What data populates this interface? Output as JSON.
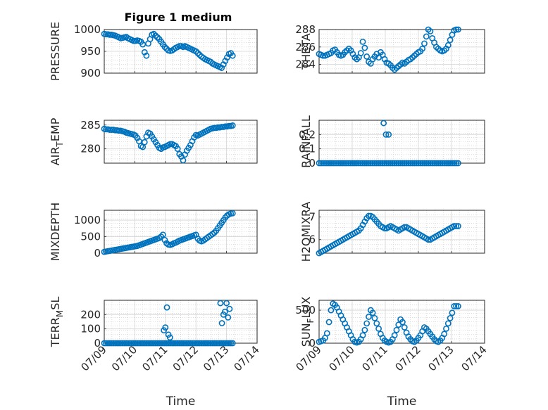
{
  "figure_title": "Figure 1 medium",
  "marker_color": "#0072BD",
  "x_tick_labels": [
    "07/09",
    "07/10",
    "07/11",
    "07/12",
    "07/13",
    "07/14"
  ],
  "chart_data": [
    {
      "type": "scatter",
      "id": "pressure",
      "xlabel": "",
      "ylabel": {
        "main": "PRESSURE",
        "sub": ""
      },
      "xlim": [
        0,
        5
      ],
      "ylim": [
        900,
        1000
      ],
      "yticks": [
        900,
        950,
        1000
      ],
      "ytick_labels": [
        "900",
        "950",
        "1000"
      ],
      "x": [
        0.0,
        0.06,
        0.12,
        0.18,
        0.24,
        0.3,
        0.36,
        0.42,
        0.48,
        0.54,
        0.6,
        0.66,
        0.72,
        0.78,
        0.84,
        0.9,
        0.96,
        1.02,
        1.08,
        1.14,
        1.2,
        1.26,
        1.32,
        1.38,
        1.44,
        1.5,
        1.56,
        1.62,
        1.68,
        1.74,
        1.8,
        1.86,
        1.92,
        1.98,
        2.04,
        2.1,
        2.16,
        2.22,
        2.28,
        2.34,
        2.4,
        2.46,
        2.52,
        2.58,
        2.64,
        2.7,
        2.76,
        2.82,
        2.88,
        2.94,
        3.0,
        3.06,
        3.12,
        3.18,
        3.24,
        3.3,
        3.36,
        3.42,
        3.48,
        3.54,
        3.6,
        3.66,
        3.72,
        3.78,
        3.84,
        3.9,
        3.96,
        4.02,
        4.08,
        4.14,
        4.2
      ],
      "y": [
        990,
        989,
        989,
        988,
        988,
        987,
        986,
        984,
        982,
        980,
        981,
        982,
        983,
        980,
        978,
        976,
        974,
        974,
        975,
        974,
        972,
        966,
        948,
        940,
        968,
        978,
        988,
        990,
        986,
        982,
        978,
        972,
        966,
        960,
        956,
        952,
        951,
        952,
        955,
        958,
        960,
        962,
        962,
        960,
        962,
        960,
        958,
        956,
        954,
        952,
        950,
        946,
        942,
        938,
        935,
        932,
        930,
        928,
        926,
        922,
        920,
        918,
        916,
        914,
        912,
        920,
        928,
        936,
        944,
        946,
        940
      ]
    },
    {
      "type": "scatter",
      "id": "theta",
      "xlabel": "",
      "ylabel": {
        "main": "THETA",
        "sub": ""
      },
      "xlim": [
        0,
        5
      ],
      "ylim": [
        283,
        288
      ],
      "yticks": [
        284,
        286,
        288
      ],
      "ytick_labels": [
        "284",
        "286",
        "288"
      ],
      "x": [
        0.0,
        0.06,
        0.12,
        0.18,
        0.24,
        0.3,
        0.36,
        0.42,
        0.48,
        0.54,
        0.6,
        0.66,
        0.72,
        0.78,
        0.84,
        0.9,
        0.96,
        1.02,
        1.08,
        1.14,
        1.2,
        1.26,
        1.32,
        1.38,
        1.44,
        1.5,
        1.56,
        1.62,
        1.68,
        1.74,
        1.8,
        1.86,
        1.92,
        1.98,
        2.04,
        2.1,
        2.16,
        2.22,
        2.28,
        2.34,
        2.4,
        2.46,
        2.52,
        2.58,
        2.64,
        2.7,
        2.76,
        2.82,
        2.88,
        2.94,
        3.0,
        3.06,
        3.12,
        3.18,
        3.24,
        3.3,
        3.36,
        3.42,
        3.48,
        3.54,
        3.6,
        3.66,
        3.72,
        3.78,
        3.84,
        3.9,
        3.96,
        4.02,
        4.08,
        4.14,
        4.2
      ],
      "y": [
        285.2,
        285.1,
        285.0,
        285.0,
        285.1,
        285.2,
        285.3,
        285.6,
        285.7,
        285.4,
        285.1,
        285.0,
        285.1,
        285.4,
        285.6,
        285.8,
        285.6,
        285.2,
        284.8,
        284.6,
        284.8,
        285.3,
        286.6,
        285.9,
        284.9,
        284.3,
        284.1,
        284.6,
        284.9,
        285.2,
        284.8,
        285.4,
        285.1,
        284.6,
        284.2,
        284.1,
        283.9,
        283.6,
        283.4,
        283.6,
        283.8,
        284.0,
        284.2,
        284.1,
        284.3,
        284.5,
        284.6,
        284.8,
        285.0,
        285.2,
        285.4,
        285.5,
        285.8,
        286.4,
        287.2,
        288.3,
        287.8,
        287.0,
        286.5,
        286.0,
        285.8,
        285.6,
        285.5,
        285.6,
        285.8,
        286.2,
        286.8,
        287.4,
        287.9,
        288.2,
        288.3
      ]
    },
    {
      "type": "scatter",
      "id": "air-temp",
      "xlabel": "",
      "ylabel": {
        "main": "AIR",
        "sub": "T",
        "suffix": "EMP"
      },
      "xlim": [
        0,
        5
      ],
      "ylim": [
        277,
        286
      ],
      "yticks": [
        280,
        285
      ],
      "ytick_labels": [
        "280",
        "285"
      ],
      "x": [
        0.0,
        0.06,
        0.12,
        0.18,
        0.24,
        0.3,
        0.36,
        0.42,
        0.48,
        0.54,
        0.6,
        0.66,
        0.72,
        0.78,
        0.84,
        0.9,
        0.96,
        1.02,
        1.08,
        1.14,
        1.2,
        1.26,
        1.32,
        1.38,
        1.44,
        1.5,
        1.56,
        1.62,
        1.68,
        1.74,
        1.8,
        1.86,
        1.92,
        1.98,
        2.04,
        2.1,
        2.16,
        2.22,
        2.28,
        2.34,
        2.4,
        2.46,
        2.52,
        2.58,
        2.64,
        2.7,
        2.76,
        2.82,
        2.88,
        2.94,
        3.0,
        3.06,
        3.12,
        3.18,
        3.24,
        3.3,
        3.36,
        3.42,
        3.48,
        3.54,
        3.6,
        3.66,
        3.72,
        3.78,
        3.84,
        3.9,
        3.96,
        4.02,
        4.08,
        4.14,
        4.2
      ],
      "y": [
        284.2,
        284.1,
        284.1,
        284.0,
        284.0,
        284.0,
        283.9,
        283.9,
        283.8,
        283.8,
        283.7,
        283.6,
        283.4,
        283.3,
        283.2,
        283.1,
        283.0,
        282.8,
        282.3,
        281.6,
        280.6,
        280.4,
        281.4,
        282.6,
        283.4,
        283.2,
        282.6,
        282.0,
        281.4,
        280.8,
        280.2,
        280.0,
        280.3,
        280.4,
        280.6,
        280.8,
        281.0,
        281.0,
        280.8,
        280.6,
        280.0,
        278.9,
        278.4,
        277.6,
        278.8,
        279.6,
        280.2,
        280.8,
        281.6,
        282.4,
        282.9,
        282.8,
        283.0,
        283.2,
        283.4,
        283.6,
        283.8,
        284.0,
        284.2,
        284.3,
        284.4,
        284.4,
        284.5,
        284.5,
        284.6,
        284.6,
        284.7,
        284.7,
        284.8,
        284.8,
        284.9
      ]
    },
    {
      "type": "scatter",
      "id": "rainfall",
      "xlabel": "",
      "ylabel": {
        "main": "RAINFALL",
        "sub": ""
      },
      "xlim": [
        0,
        5
      ],
      "ylim": [
        0,
        0.3
      ],
      "yticks": [
        0,
        0.1,
        0.2
      ],
      "ytick_labels": [
        "0",
        "0.1",
        "0.2"
      ],
      "x": [
        0.0,
        0.06,
        0.12,
        0.18,
        0.24,
        0.3,
        0.36,
        0.42,
        0.48,
        0.54,
        0.6,
        0.66,
        0.72,
        0.78,
        0.84,
        0.9,
        0.96,
        1.02,
        1.08,
        1.14,
        1.2,
        1.26,
        1.32,
        1.38,
        1.44,
        1.5,
        1.56,
        1.62,
        1.68,
        1.74,
        1.8,
        1.86,
        1.92,
        1.98,
        2.04,
        2.1,
        2.16,
        2.22,
        2.28,
        2.34,
        2.4,
        2.46,
        2.52,
        2.58,
        2.64,
        2.7,
        2.76,
        2.82,
        2.88,
        2.94,
        3.0,
        3.06,
        3.12,
        3.18,
        3.24,
        3.3,
        3.36,
        3.42,
        3.48,
        3.54,
        3.6,
        3.66,
        3.72,
        3.78,
        3.84,
        3.9,
        3.96,
        4.02,
        4.08,
        4.14,
        4.2
      ],
      "y": [
        0,
        0,
        0,
        0,
        0,
        0,
        0,
        0,
        0,
        0,
        0,
        0,
        0,
        0,
        0,
        0,
        0,
        0,
        0,
        0,
        0,
        0,
        0,
        0,
        0,
        0,
        0,
        0,
        0,
        0,
        0,
        0,
        0,
        0,
        0,
        0,
        0,
        0,
        0,
        0,
        0,
        0,
        0,
        0,
        0,
        0,
        0,
        0,
        0,
        0,
        0,
        0,
        0,
        0,
        0,
        0,
        0,
        0,
        0,
        0,
        0,
        0,
        0,
        0,
        0,
        0,
        0,
        0,
        0,
        0,
        0
      ],
      "extra_points": [
        [
          1.95,
          0.28
        ],
        [
          2.02,
          0.2
        ],
        [
          2.1,
          0.2
        ]
      ]
    },
    {
      "type": "scatter",
      "id": "mixdepth",
      "xlabel": "",
      "ylabel": {
        "main": "MIXDEPTH",
        "sub": ""
      },
      "xlim": [
        0,
        5
      ],
      "ylim": [
        0,
        1300
      ],
      "yticks": [
        0,
        500,
        1000
      ],
      "ytick_labels": [
        "0",
        "500",
        "1000"
      ],
      "x": [
        0.0,
        0.06,
        0.12,
        0.18,
        0.24,
        0.3,
        0.36,
        0.42,
        0.48,
        0.54,
        0.6,
        0.66,
        0.72,
        0.78,
        0.84,
        0.9,
        0.96,
        1.02,
        1.08,
        1.14,
        1.2,
        1.26,
        1.32,
        1.38,
        1.44,
        1.5,
        1.56,
        1.62,
        1.68,
        1.74,
        1.8,
        1.86,
        1.92,
        1.98,
        2.04,
        2.1,
        2.16,
        2.22,
        2.28,
        2.34,
        2.4,
        2.46,
        2.52,
        2.58,
        2.64,
        2.7,
        2.76,
        2.82,
        2.88,
        2.94,
        3.0,
        3.06,
        3.12,
        3.18,
        3.24,
        3.3,
        3.36,
        3.42,
        3.48,
        3.54,
        3.6,
        3.66,
        3.72,
        3.78,
        3.84,
        3.9,
        3.96,
        4.02,
        4.08,
        4.14,
        4.2
      ],
      "y": [
        40,
        50,
        60,
        70,
        80,
        90,
        100,
        110,
        120,
        130,
        140,
        150,
        160,
        170,
        180,
        190,
        200,
        210,
        220,
        240,
        260,
        280,
        300,
        320,
        340,
        360,
        380,
        400,
        420,
        440,
        460,
        500,
        560,
        400,
        300,
        260,
        250,
        270,
        300,
        320,
        350,
        380,
        400,
        420,
        440,
        460,
        480,
        500,
        520,
        540,
        560,
        440,
        380,
        360,
        380,
        420,
        460,
        500,
        540,
        580,
        620,
        680,
        760,
        840,
        920,
        1000,
        1080,
        1140,
        1180,
        1200,
        1210
      ]
    },
    {
      "type": "scatter",
      "id": "h2omixra",
      "xlabel": "",
      "ylabel": {
        "main": "H2OMIXRA",
        "sub": ""
      },
      "xlim": [
        0,
        5
      ],
      "ylim": [
        5.4,
        7.3
      ],
      "yticks": [
        6,
        7
      ],
      "ytick_labels": [
        "6",
        "7"
      ],
      "x": [
        0.0,
        0.06,
        0.12,
        0.18,
        0.24,
        0.3,
        0.36,
        0.42,
        0.48,
        0.54,
        0.6,
        0.66,
        0.72,
        0.78,
        0.84,
        0.9,
        0.96,
        1.02,
        1.08,
        1.14,
        1.2,
        1.26,
        1.32,
        1.38,
        1.44,
        1.5,
        1.56,
        1.62,
        1.68,
        1.74,
        1.8,
        1.86,
        1.92,
        1.98,
        2.04,
        2.1,
        2.16,
        2.22,
        2.28,
        2.34,
        2.4,
        2.46,
        2.52,
        2.58,
        2.64,
        2.7,
        2.76,
        2.82,
        2.88,
        2.94,
        3.0,
        3.06,
        3.12,
        3.18,
        3.24,
        3.3,
        3.36,
        3.42,
        3.48,
        3.54,
        3.6,
        3.66,
        3.72,
        3.78,
        3.84,
        3.9,
        3.96,
        4.02,
        4.08,
        4.14,
        4.2
      ],
      "y": [
        5.4,
        5.45,
        5.5,
        5.55,
        5.6,
        5.65,
        5.7,
        5.75,
        5.8,
        5.85,
        5.9,
        5.95,
        6.0,
        6.05,
        6.1,
        6.15,
        6.2,
        6.25,
        6.3,
        6.35,
        6.4,
        6.5,
        6.65,
        6.8,
        6.95,
        7.05,
        7.05,
        7.0,
        6.9,
        6.8,
        6.7,
        6.6,
        6.55,
        6.5,
        6.5,
        6.55,
        6.6,
        6.55,
        6.5,
        6.45,
        6.4,
        6.45,
        6.5,
        6.55,
        6.55,
        6.5,
        6.45,
        6.4,
        6.35,
        6.3,
        6.25,
        6.2,
        6.15,
        6.1,
        6.05,
        6.0,
        6.0,
        6.05,
        6.1,
        6.15,
        6.2,
        6.25,
        6.3,
        6.35,
        6.4,
        6.45,
        6.5,
        6.55,
        6.6,
        6.6,
        6.6
      ]
    },
    {
      "type": "scatter",
      "id": "terr-msl",
      "xlabel": "Time",
      "ylabel": {
        "main": "TERR",
        "sub": "M",
        "suffix": "SL"
      },
      "xlim": [
        0,
        5
      ],
      "ylim": [
        0,
        300
      ],
      "yticks": [
        0,
        100,
        200
      ],
      "ytick_labels": [
        "0",
        "100",
        "200"
      ],
      "x": [
        0.0,
        0.06,
        0.12,
        0.18,
        0.24,
        0.3,
        0.36,
        0.42,
        0.48,
        0.54,
        0.6,
        0.66,
        0.72,
        0.78,
        0.84,
        0.9,
        0.96,
        1.02,
        1.08,
        1.14,
        1.2,
        1.26,
        1.32,
        1.38,
        1.44,
        1.5,
        1.56,
        1.62,
        1.68,
        1.74,
        1.8,
        1.86,
        1.92,
        1.98,
        2.04,
        2.1,
        2.16,
        2.22,
        2.28,
        2.34,
        2.4,
        2.46,
        2.52,
        2.58,
        2.64,
        2.7,
        2.76,
        2.82,
        2.88,
        2.94,
        3.0,
        3.06,
        3.12,
        3.18,
        3.24,
        3.3,
        3.36,
        3.42,
        3.48,
        3.54,
        3.6,
        3.66,
        3.72,
        3.78,
        3.84,
        3.9,
        3.96,
        4.02,
        4.08,
        4.14,
        4.2
      ],
      "y": [
        0,
        0,
        0,
        0,
        0,
        0,
        0,
        0,
        0,
        0,
        0,
        0,
        0,
        0,
        0,
        0,
        0,
        0,
        0,
        0,
        0,
        0,
        0,
        0,
        0,
        0,
        0,
        0,
        0,
        0,
        0,
        0,
        0,
        0,
        0,
        0,
        0,
        0,
        0,
        0,
        0,
        0,
        0,
        0,
        0,
        0,
        0,
        0,
        0,
        0,
        0,
        0,
        0,
        0,
        0,
        0,
        0,
        0,
        0,
        0,
        0,
        0,
        0,
        0,
        0,
        0,
        0,
        0,
        0,
        0,
        0
      ],
      "extra_points": [
        [
          1.95,
          90
        ],
        [
          2.0,
          110
        ],
        [
          2.05,
          250
        ],
        [
          2.1,
          60
        ],
        [
          2.15,
          40
        ],
        [
          3.8,
          280
        ],
        [
          3.85,
          140
        ],
        [
          3.9,
          200
        ],
        [
          3.95,
          220
        ],
        [
          4.0,
          280
        ],
        [
          4.05,
          180
        ],
        [
          4.1,
          240
        ]
      ]
    },
    {
      "type": "scatter",
      "id": "sunflux",
      "xlabel": "Time",
      "ylabel": {
        "main": "SUN",
        "sub": "F",
        "suffix": "LUX"
      },
      "xlim": [
        0,
        5
      ],
      "ylim": [
        0,
        650
      ],
      "yticks": [
        0,
        500
      ],
      "ytick_labels": [
        "0",
        "500"
      ],
      "x": [
        0.0,
        0.06,
        0.12,
        0.18,
        0.24,
        0.3,
        0.36,
        0.42,
        0.48,
        0.54,
        0.6,
        0.66,
        0.72,
        0.78,
        0.84,
        0.9,
        0.96,
        1.02,
        1.08,
        1.14,
        1.2,
        1.26,
        1.32,
        1.38,
        1.44,
        1.5,
        1.56,
        1.62,
        1.68,
        1.74,
        1.8,
        1.86,
        1.92,
        1.98,
        2.04,
        2.1,
        2.16,
        2.22,
        2.28,
        2.34,
        2.4,
        2.46,
        2.52,
        2.58,
        2.64,
        2.7,
        2.76,
        2.82,
        2.88,
        2.94,
        3.0,
        3.06,
        3.12,
        3.18,
        3.24,
        3.3,
        3.36,
        3.42,
        3.48,
        3.54,
        3.6,
        3.66,
        3.72,
        3.78,
        3.84,
        3.9,
        3.96,
        4.02,
        4.08,
        4.14,
        4.2
      ],
      "y": [
        20,
        30,
        40,
        80,
        150,
        320,
        500,
        600,
        580,
        540,
        480,
        420,
        360,
        300,
        240,
        180,
        120,
        60,
        20,
        10,
        20,
        60,
        120,
        200,
        300,
        400,
        500,
        460,
        380,
        300,
        220,
        140,
        80,
        40,
        20,
        10,
        20,
        60,
        120,
        200,
        280,
        360,
        320,
        240,
        160,
        100,
        60,
        30,
        20,
        40,
        80,
        120,
        180,
        240,
        220,
        180,
        140,
        100,
        60,
        30,
        20,
        40,
        80,
        140,
        220,
        300,
        380,
        460,
        560,
        560,
        560
      ]
    }
  ]
}
